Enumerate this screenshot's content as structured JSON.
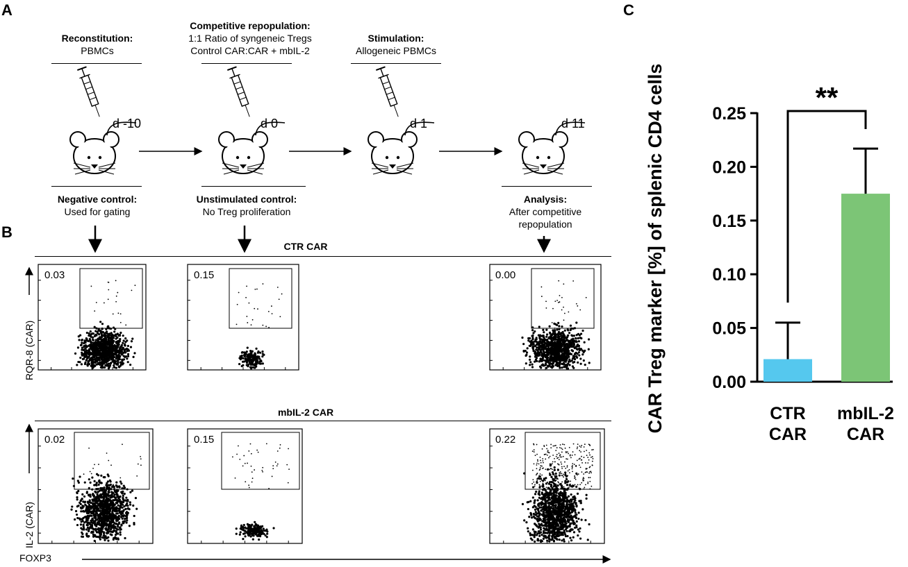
{
  "panels": {
    "a": "A",
    "b": "B",
    "c": "C"
  },
  "timeline": {
    "steps": [
      {
        "title": "Reconstitution:",
        "lines": [
          "PBMCs"
        ],
        "day": "d -10",
        "below_title": "Negative control:",
        "below_lines": [
          "Used for gating"
        ]
      },
      {
        "title": "Competitive repopulation:",
        "lines": [
          "1:1 Ratio of syngeneic Tregs",
          "Control CAR:CAR + mbIL-2"
        ],
        "day": "d 0",
        "below_title": "Unstimulated control:",
        "below_lines": [
          "No Treg proliferation"
        ]
      },
      {
        "title": "Stimulation:",
        "lines": [
          "Allogeneic PBMCs"
        ],
        "day": "d 1",
        "below_title": "",
        "below_lines": []
      },
      {
        "title": "",
        "lines": [],
        "day": "d 11",
        "below_title": "Analysis:",
        "below_lines": [
          "After competitive",
          "repopulation"
        ]
      }
    ]
  },
  "flow": {
    "rows": [
      {
        "title": "CTR CAR",
        "ylabel": "RQR-8 (CAR)",
        "values": [
          "0.03",
          "0.15",
          "0.00"
        ]
      },
      {
        "title": "mbIL-2 CAR",
        "ylabel": "IL-2 (CAR)",
        "values": [
          "0.02",
          "0.15",
          "0.22"
        ]
      }
    ],
    "xlabel": "FOXP3"
  },
  "chart_data": {
    "type": "bar",
    "categories": [
      [
        "CTR",
        "CAR"
      ],
      [
        "mbIL-2",
        "CAR"
      ]
    ],
    "values": [
      0.021,
      0.175
    ],
    "errors": [
      0.034,
      0.042
    ],
    "colors": [
      "#55c8ee",
      "#7cc576"
    ],
    "ylabel": "CAR Treg marker [%] of splenic CD4 cells",
    "ylim": [
      0,
      0.25
    ],
    "yticks": [
      "0.00",
      "0.05",
      "0.10",
      "0.15",
      "0.20",
      "0.25"
    ],
    "significance": "**"
  }
}
